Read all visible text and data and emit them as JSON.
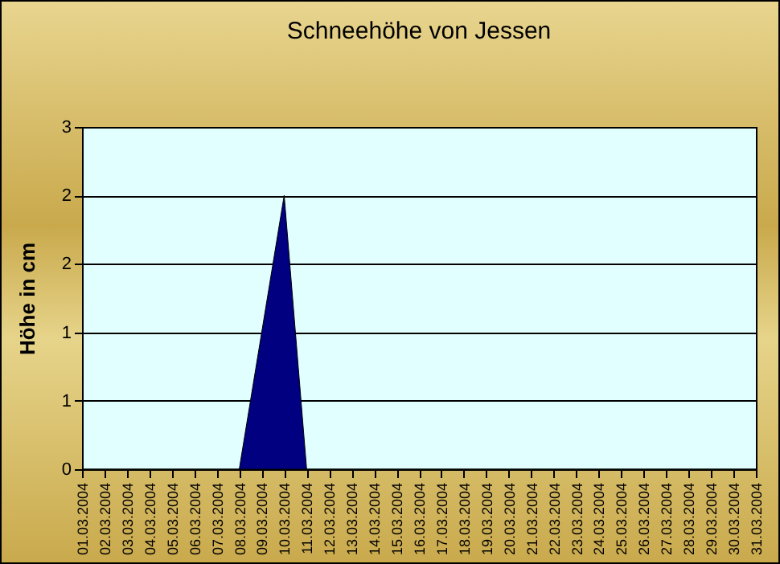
{
  "chart_data": {
    "type": "area",
    "title": "Schneehöhe von Jessen",
    "ylabel": "Höhe in cm",
    "categories": [
      "01.03.2004",
      "02.03.2004",
      "03.03.2004",
      "04.03.2004",
      "05.03.2004",
      "06.03.2004",
      "07.03.2004",
      "08.03.2004",
      "09.03.2004",
      "10.03.2004",
      "11.03.2004",
      "12.03.2004",
      "13.03.2004",
      "14.03.2004",
      "15.03.2004",
      "16.03.2004",
      "17.03.2004",
      "18.03.2004",
      "19.03.2004",
      "20.03.2004",
      "21.03.2004",
      "22.03.2004",
      "23.03.2004",
      "24.03.2004",
      "25.03.2004",
      "26.03.2004",
      "27.03.2004",
      "28.03.2004",
      "29.03.2004",
      "30.03.2004",
      "31.03.2004"
    ],
    "series": [
      {
        "color": "#000080",
        "values": [
          0,
          0,
          0,
          0,
          0,
          0,
          0,
          0,
          1.2,
          2.4,
          0,
          0,
          0,
          0,
          0,
          0,
          0,
          0,
          0,
          0,
          0,
          0,
          0,
          0,
          0,
          0,
          0,
          0,
          0,
          0,
          0
        ]
      }
    ],
    "ylim": [
      0,
      3
    ],
    "yticks": [
      {
        "value": 0,
        "label": "0"
      },
      {
        "value": 0.6,
        "label": "1"
      },
      {
        "value": 1.2,
        "label": "1"
      },
      {
        "value": 1.8,
        "label": "2"
      },
      {
        "value": 2.4,
        "label": "2"
      },
      {
        "value": 3,
        "label": "3"
      }
    ],
    "grid": "y",
    "legend": false
  }
}
